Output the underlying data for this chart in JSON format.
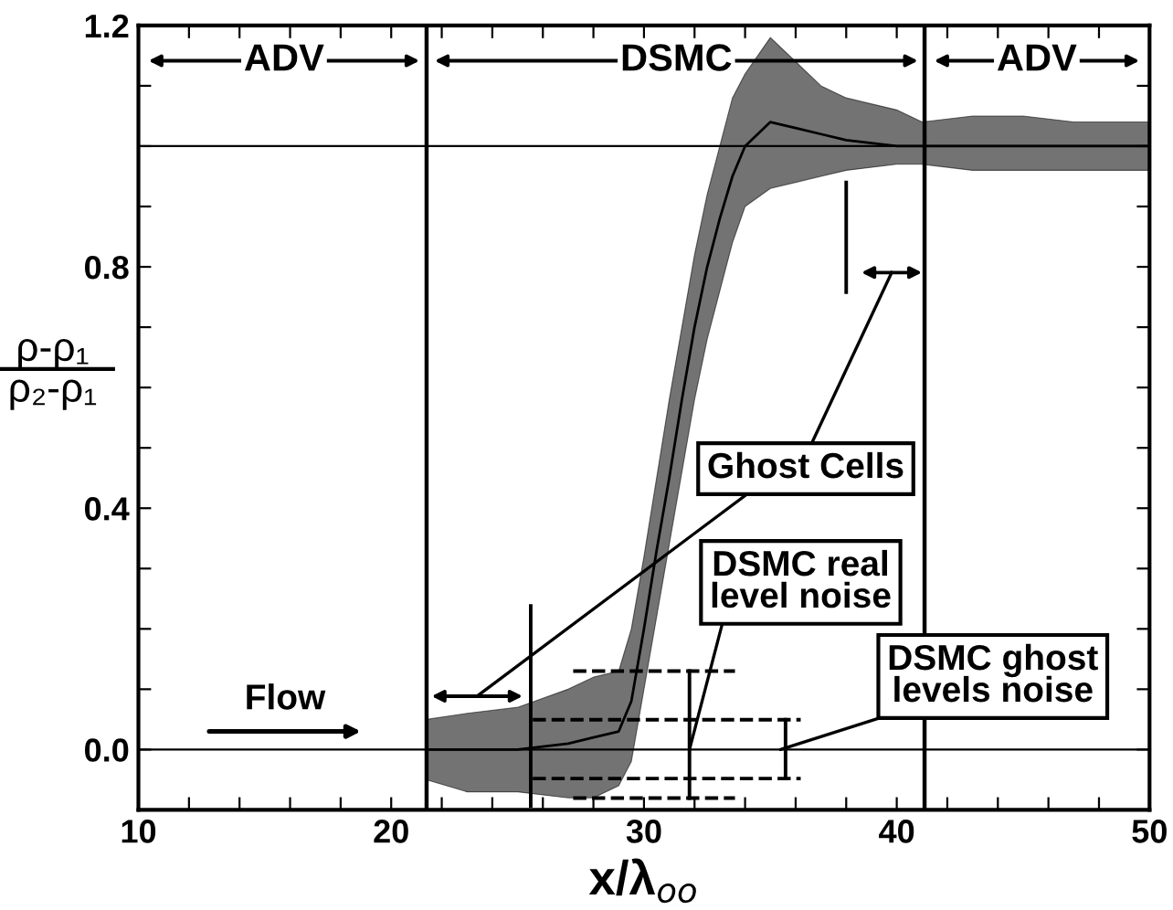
{
  "chart_data": {
    "type": "line",
    "xlabel": "x/λ$_{oo}$",
    "ylabel": "ρ-ρ₁\nρ₂-ρ₁",
    "x": [
      21.4,
      23,
      25,
      27,
      28,
      29,
      29.5,
      30,
      30.5,
      31,
      31.5,
      32,
      32.5,
      33,
      33.5,
      34,
      35,
      36,
      37,
      38,
      40,
      41,
      43,
      45,
      47,
      50
    ],
    "series": [
      {
        "color": "#000000",
        "values": [
          0,
          0,
          0,
          0.01,
          0.02,
          0.03,
          0.08,
          0.2,
          0.33,
          0.45,
          0.58,
          0.7,
          0.8,
          0.88,
          0.95,
          1.0,
          1.04,
          1.03,
          1.02,
          1.01,
          1.0,
          1.0,
          1.0,
          1.0,
          1.0,
          1.0
        ],
        "upper": [
          0.05,
          0.06,
          0.07,
          0.1,
          0.12,
          0.13,
          0.2,
          0.32,
          0.45,
          0.58,
          0.7,
          0.82,
          0.92,
          1.0,
          1.08,
          1.12,
          1.18,
          1.14,
          1.1,
          1.08,
          1.06,
          1.04,
          1.05,
          1.05,
          1.04,
          1.04
        ],
        "lower": [
          -0.05,
          -0.07,
          -0.07,
          -0.08,
          -0.08,
          -0.06,
          -0.02,
          0.1,
          0.22,
          0.34,
          0.46,
          0.58,
          0.68,
          0.76,
          0.84,
          0.9,
          0.93,
          0.94,
          0.95,
          0.96,
          0.97,
          0.97,
          0.96,
          0.96,
          0.96,
          0.96
        ]
      }
    ],
    "xlim": [
      10,
      50
    ],
    "ylim": [
      -0.1,
      1.2
    ],
    "xticks": [
      10,
      {
        "value": 12,
        "label": null
      },
      {
        "value": 14,
        "label": null
      },
      {
        "value": 16,
        "label": null
      },
      {
        "value": 18,
        "label": null
      },
      20,
      {
        "value": 22,
        "label": null
      },
      {
        "value": 24,
        "label": null
      },
      {
        "value": 26,
        "label": null
      },
      {
        "value": 28,
        "label": null
      },
      30,
      {
        "value": 32,
        "label": null
      },
      {
        "value": 34,
        "label": null
      },
      {
        "value": 36,
        "label": null
      },
      {
        "value": 38,
        "label": null
      },
      40,
      {
        "value": 42,
        "label": null
      },
      {
        "value": 44,
        "label": null
      },
      {
        "value": 46,
        "label": null
      },
      {
        "value": 48,
        "label": null
      },
      50
    ],
    "yticks": [
      {
        "value": 0,
        "label": "0.0"
      },
      {
        "value": 0.1,
        "label": null
      },
      {
        "value": 0.2,
        "label": null
      },
      {
        "value": 0.3,
        "label": null
      },
      {
        "value": 0.4,
        "label": "0.4"
      },
      {
        "value": 0.5,
        "label": null
      },
      {
        "value": 0.6,
        "label": null
      },
      {
        "value": 0.7,
        "label": null
      },
      {
        "value": 0.8,
        "label": "0.8"
      },
      {
        "value": 0.9,
        "label": null
      },
      {
        "value": 1.0,
        "label": null
      },
      {
        "value": 1.1,
        "label": null
      },
      {
        "value": 1.2,
        "label": "1.2"
      }
    ],
    "grid": false,
    "marker": "none",
    "line_style": "solid",
    "legend": false,
    "ref_lines": [
      {
        "axis": "y",
        "value": 0,
        "color": "#000000"
      },
      {
        "axis": "y",
        "value": 1.0,
        "color": "#000000"
      },
      {
        "axis": "x",
        "value": 21.4,
        "color": "#000000"
      },
      {
        "axis": "x",
        "value": 41.1,
        "color": "#000000"
      }
    ],
    "annotations": [
      "ADV",
      "DSMC",
      "ADV",
      "Ghost Cells",
      {
        "text": "DSMC real\nlevel noise",
        "x": 31.8,
        "y": 0.0
      },
      {
        "text": "DSMC ghost\nlevels noise",
        "x": 35.4,
        "y": 0.0
      },
      "Flow"
    ]
  }
}
